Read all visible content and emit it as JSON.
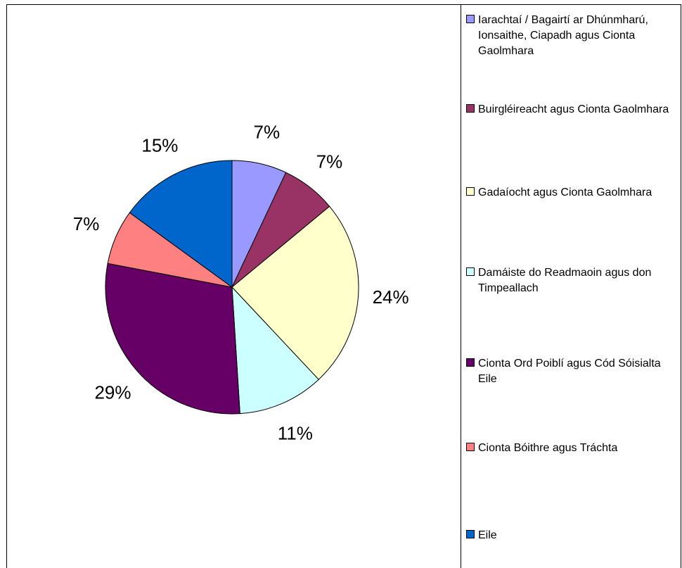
{
  "chart_data": {
    "type": "pie",
    "title": "",
    "legend_position": "right",
    "slices": [
      {
        "label": "Iarachtaí / Bagairtí ar Dhúnmharú, Ionsaithe, Ciapadh agus Cionta Gaolmhara",
        "value": 7,
        "display": "7%",
        "color": "#9999ff"
      },
      {
        "label": "Buirgléireacht agus Cionta Gaolmhara",
        "value": 7,
        "display": "7%",
        "color": "#993366"
      },
      {
        "label": "Gadaíocht agus Cionta Gaolmhara",
        "value": 24,
        "display": "24%",
        "color": "#ffffcc"
      },
      {
        "label": "Damáiste do Readmaoin agus don Timpeallach",
        "value": 11,
        "display": "11%",
        "color": "#ccffff"
      },
      {
        "label": "Cionta Ord Poiblí agus Cód Sóisialta Eile",
        "value": 29,
        "display": "29%",
        "color": "#660066"
      },
      {
        "label": "Cionta Bóithre agus Tráchta",
        "value": 7,
        "display": "7%",
        "color": "#ff8080"
      },
      {
        "label": "Eile",
        "value": 15,
        "display": "15%",
        "color": "#0066cc"
      }
    ]
  }
}
